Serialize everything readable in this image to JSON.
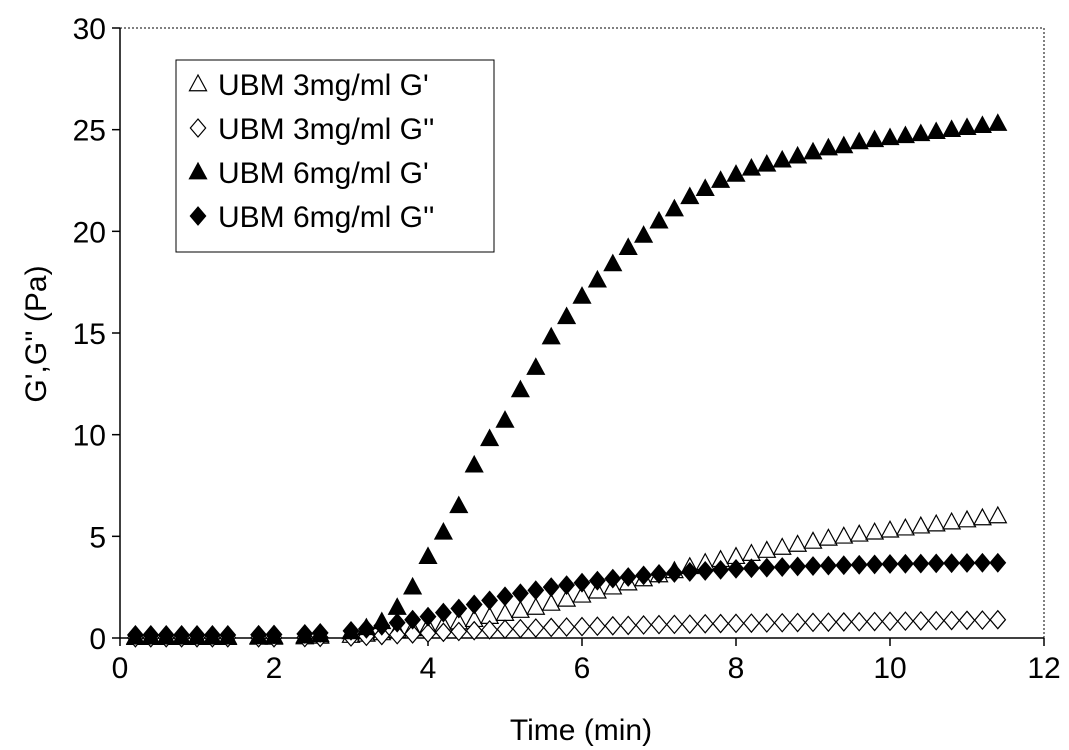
{
  "chart_data": {
    "type": "scatter",
    "title": "",
    "xlabel": "Time (min)",
    "ylabel": "G',G'' (Pa)",
    "xlim": [
      0,
      12
    ],
    "ylim": [
      0,
      30
    ],
    "xticks": [
      0,
      2,
      4,
      6,
      8,
      10,
      12
    ],
    "yticks": [
      0,
      5,
      10,
      15,
      20,
      25,
      30
    ],
    "grid": false,
    "legend_position": "top-left",
    "series": [
      {
        "name": "UBM 3mg/ml G'",
        "marker": "triangle-open",
        "x": [
          0.2,
          0.4,
          0.6,
          0.8,
          1.0,
          1.2,
          1.4,
          1.8,
          2.0,
          2.4,
          2.6,
          3.0,
          3.2,
          3.4,
          3.6,
          3.8,
          4.0,
          4.2,
          4.4,
          4.6,
          4.8,
          5.0,
          5.2,
          5.4,
          5.6,
          5.8,
          6.0,
          6.2,
          6.4,
          6.6,
          6.8,
          7.0,
          7.2,
          7.4,
          7.6,
          7.8,
          8.0,
          8.2,
          8.4,
          8.6,
          8.8,
          9.0,
          9.2,
          9.4,
          9.6,
          9.8,
          10.0,
          10.2,
          10.4,
          10.6,
          10.8,
          11.0,
          11.2,
          11.4
        ],
        "y": [
          0.02,
          0.02,
          0.02,
          0.02,
          0.02,
          0.02,
          0.02,
          0.03,
          0.03,
          0.05,
          0.08,
          0.12,
          0.18,
          0.25,
          0.35,
          0.45,
          0.55,
          0.65,
          0.78,
          0.9,
          1.05,
          1.2,
          1.35,
          1.5,
          1.7,
          1.9,
          2.1,
          2.3,
          2.5,
          2.7,
          2.9,
          3.1,
          3.3,
          3.5,
          3.7,
          3.85,
          4.0,
          4.15,
          4.3,
          4.45,
          4.6,
          4.75,
          4.9,
          5.0,
          5.1,
          5.2,
          5.3,
          5.4,
          5.5,
          5.6,
          5.7,
          5.8,
          5.9,
          6.0
        ]
      },
      {
        "name": "UBM 3mg/ml G''",
        "marker": "diamond-open",
        "x": [
          0.2,
          0.4,
          0.6,
          0.8,
          1.0,
          1.2,
          1.4,
          1.8,
          2.0,
          2.4,
          2.6,
          3.0,
          3.2,
          3.4,
          3.6,
          3.8,
          4.0,
          4.2,
          4.4,
          4.6,
          4.8,
          5.0,
          5.2,
          5.4,
          5.6,
          5.8,
          6.0,
          6.2,
          6.4,
          6.6,
          6.8,
          7.0,
          7.2,
          7.4,
          7.6,
          7.8,
          8.0,
          8.2,
          8.4,
          8.6,
          8.8,
          9.0,
          9.2,
          9.4,
          9.6,
          9.8,
          10.0,
          10.2,
          10.4,
          10.6,
          10.8,
          11.0,
          11.2,
          11.4
        ],
        "y": [
          0.01,
          0.01,
          0.01,
          0.01,
          0.01,
          0.01,
          0.01,
          0.01,
          0.01,
          0.02,
          0.03,
          0.05,
          0.08,
          0.12,
          0.16,
          0.2,
          0.24,
          0.28,
          0.32,
          0.36,
          0.4,
          0.43,
          0.46,
          0.49,
          0.52,
          0.54,
          0.56,
          0.58,
          0.6,
          0.62,
          0.64,
          0.66,
          0.67,
          0.68,
          0.7,
          0.71,
          0.72,
          0.73,
          0.74,
          0.75,
          0.76,
          0.77,
          0.78,
          0.79,
          0.8,
          0.81,
          0.82,
          0.83,
          0.84,
          0.85,
          0.86,
          0.87,
          0.88,
          0.9
        ]
      },
      {
        "name": "UBM 6mg/ml G'",
        "marker": "triangle-filled",
        "x": [
          0.2,
          0.4,
          0.6,
          0.8,
          1.0,
          1.2,
          1.4,
          1.8,
          2.0,
          2.4,
          2.6,
          3.0,
          3.2,
          3.4,
          3.6,
          3.8,
          4.0,
          4.2,
          4.4,
          4.6,
          4.8,
          5.0,
          5.2,
          5.4,
          5.6,
          5.8,
          6.0,
          6.2,
          6.4,
          6.6,
          6.8,
          7.0,
          7.2,
          7.4,
          7.6,
          7.8,
          8.0,
          8.2,
          8.4,
          8.6,
          8.8,
          9.0,
          9.2,
          9.4,
          9.6,
          9.8,
          10.0,
          10.2,
          10.4,
          10.6,
          10.8,
          11.0,
          11.2,
          11.4
        ],
        "y": [
          0.05,
          0.05,
          0.05,
          0.05,
          0.05,
          0.05,
          0.05,
          0.06,
          0.07,
          0.1,
          0.15,
          0.3,
          0.5,
          0.8,
          1.5,
          2.5,
          4.0,
          5.2,
          6.5,
          8.5,
          9.8,
          10.7,
          12.2,
          13.3,
          14.8,
          15.8,
          16.8,
          17.6,
          18.4,
          19.2,
          19.8,
          20.5,
          21.1,
          21.7,
          22.1,
          22.5,
          22.8,
          23.1,
          23.3,
          23.5,
          23.7,
          23.9,
          24.1,
          24.2,
          24.4,
          24.5,
          24.6,
          24.7,
          24.8,
          24.9,
          25.0,
          25.1,
          25.2,
          25.3
        ]
      },
      {
        "name": "UBM 6mg/ml G''",
        "marker": "diamond-filled",
        "x": [
          0.2,
          0.4,
          0.6,
          0.8,
          1.0,
          1.2,
          1.4,
          1.8,
          2.0,
          2.4,
          2.6,
          3.0,
          3.2,
          3.4,
          3.6,
          3.8,
          4.0,
          4.2,
          4.4,
          4.6,
          4.8,
          5.0,
          5.2,
          5.4,
          5.6,
          5.8,
          6.0,
          6.2,
          6.4,
          6.6,
          6.8,
          7.0,
          7.2,
          7.4,
          7.6,
          7.8,
          8.0,
          8.2,
          8.4,
          8.6,
          8.8,
          9.0,
          9.2,
          9.4,
          9.6,
          9.8,
          10.0,
          10.2,
          10.4,
          10.6,
          10.8,
          11.0,
          11.2,
          11.4
        ],
        "y": [
          0.15,
          0.15,
          0.15,
          0.15,
          0.15,
          0.15,
          0.15,
          0.16,
          0.17,
          0.2,
          0.25,
          0.35,
          0.45,
          0.6,
          0.75,
          0.9,
          1.05,
          1.25,
          1.45,
          1.65,
          1.85,
          2.05,
          2.2,
          2.35,
          2.5,
          2.6,
          2.72,
          2.82,
          2.92,
          3.0,
          3.08,
          3.15,
          3.2,
          3.25,
          3.3,
          3.35,
          3.4,
          3.43,
          3.46,
          3.49,
          3.52,
          3.54,
          3.56,
          3.58,
          3.6,
          3.62,
          3.64,
          3.65,
          3.66,
          3.67,
          3.68,
          3.69,
          3.7,
          3.7
        ]
      }
    ]
  }
}
